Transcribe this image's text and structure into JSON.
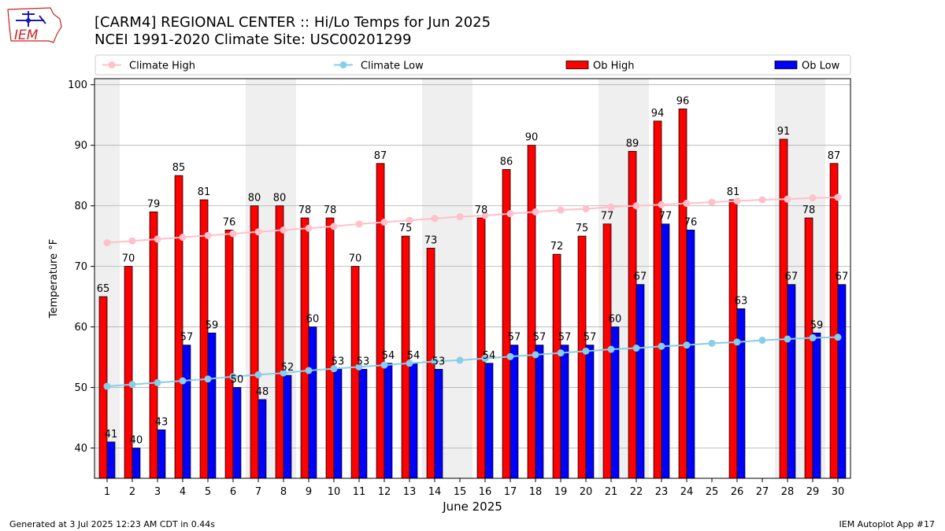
{
  "header": {
    "logo_text": "IEM",
    "title_line1": "[CARM4] REGIONAL CENTER :: Hi/Lo Temps for Jun 2025",
    "title_line2": "NCEI 1991-2020 Climate Site: USC00201299"
  },
  "footer": {
    "generated": "Generated at 3 Jul 2025 12:23 AM CDT in 0.44s",
    "app": "IEM Autoplot App #17"
  },
  "colors": {
    "ob_high": "#ff0000",
    "ob_low": "#0000ff",
    "climate_high": "#ffc0cb",
    "climate_low": "#87ceeb",
    "weekend_shade": "#efefef",
    "grid": "#b0b0b0"
  },
  "chart_data": {
    "type": "bar",
    "xlabel": "June 2025",
    "ylabel": "Temperature °F",
    "ylim": [
      35,
      101
    ],
    "yticks": [
      40,
      50,
      60,
      70,
      80,
      90,
      100
    ],
    "grid": true,
    "legend_position": "top",
    "categories": [
      "1",
      "2",
      "3",
      "4",
      "5",
      "6",
      "7",
      "8",
      "9",
      "10",
      "11",
      "12",
      "13",
      "14",
      "15",
      "16",
      "17",
      "18",
      "19",
      "20",
      "21",
      "22",
      "23",
      "24",
      "25",
      "26",
      "27",
      "28",
      "29",
      "30"
    ],
    "shaded_days": [
      1,
      7,
      8,
      14,
      15,
      21,
      22,
      28,
      29
    ],
    "series": [
      {
        "name": "Ob High",
        "kind": "bar",
        "values": [
          65,
          70,
          79,
          85,
          81,
          76,
          80,
          80,
          78,
          78,
          70,
          87,
          75,
          73,
          null,
          78,
          86,
          90,
          72,
          75,
          77,
          89,
          94,
          96,
          null,
          81,
          null,
          91,
          78,
          87
        ]
      },
      {
        "name": "Ob Low",
        "kind": "bar",
        "values": [
          41,
          40,
          43,
          57,
          59,
          50,
          48,
          52,
          60,
          53,
          53,
          54,
          54,
          53,
          null,
          54,
          57,
          57,
          57,
          57,
          60,
          67,
          77,
          76,
          null,
          63,
          null,
          67,
          59,
          67
        ]
      },
      {
        "name": "Climate High",
        "kind": "line",
        "values": [
          73.9,
          74.2,
          74.5,
          74.8,
          75.1,
          75.4,
          75.7,
          76.0,
          76.3,
          76.6,
          77.0,
          77.3,
          77.6,
          77.9,
          78.2,
          78.4,
          78.7,
          79.0,
          79.3,
          79.5,
          79.8,
          80.0,
          80.2,
          80.4,
          80.6,
          80.8,
          81.0,
          81.1,
          81.3,
          81.4
        ]
      },
      {
        "name": "Climate Low",
        "kind": "line",
        "values": [
          50.2,
          50.5,
          50.8,
          51.1,
          51.4,
          51.8,
          52.1,
          52.4,
          52.8,
          53.1,
          53.4,
          53.7,
          54.0,
          54.3,
          54.5,
          54.8,
          55.1,
          55.4,
          55.7,
          56.0,
          56.3,
          56.5,
          56.8,
          57.0,
          57.3,
          57.5,
          57.8,
          58.0,
          58.2,
          58.3
        ]
      }
    ]
  }
}
